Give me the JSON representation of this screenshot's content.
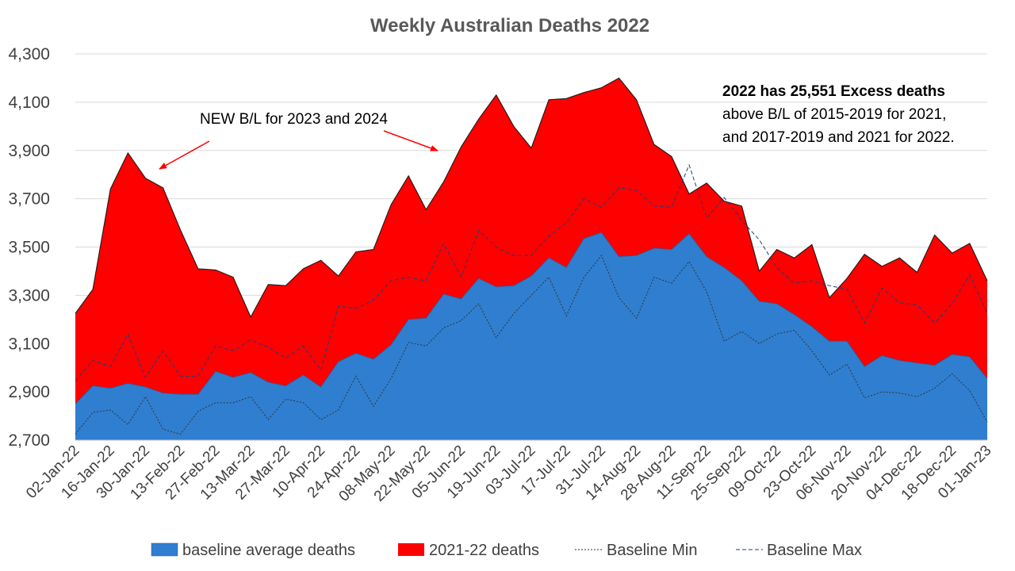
{
  "chart_data": {
    "type": "area",
    "title": "Weekly Australian Deaths 2022",
    "ylim": [
      2700,
      4300
    ],
    "yticks": [
      2700,
      2900,
      3100,
      3300,
      3500,
      3700,
      3900,
      4100,
      4300
    ],
    "ytick_labels": [
      "2,700",
      "2,900",
      "3,100",
      "3,300",
      "3,500",
      "3,700",
      "3,900",
      "4,100",
      "4,300"
    ],
    "x": [
      "02-Jan-22",
      "09-Jan-22",
      "16-Jan-22",
      "23-Jan-22",
      "30-Jan-22",
      "06-Feb-22",
      "13-Feb-22",
      "20-Feb-22",
      "27-Feb-22",
      "06-Mar-22",
      "13-Mar-22",
      "20-Mar-22",
      "27-Mar-22",
      "03-Apr-22",
      "10-Apr-22",
      "17-Apr-22",
      "24-Apr-22",
      "01-May-22",
      "08-May-22",
      "15-May-22",
      "22-May-22",
      "29-May-22",
      "05-Jun-22",
      "12-Jun-22",
      "19-Jun-22",
      "26-Jun-22",
      "03-Jul-22",
      "10-Jul-22",
      "17-Jul-22",
      "24-Jul-22",
      "31-Jul-22",
      "07-Aug-22",
      "14-Aug-22",
      "21-Aug-22",
      "28-Aug-22",
      "04-Sep-22",
      "11-Sep-22",
      "18-Sep-22",
      "25-Sep-22",
      "02-Oct-22",
      "09-Oct-22",
      "16-Oct-22",
      "23-Oct-22",
      "30-Oct-22",
      "06-Nov-22",
      "13-Nov-22",
      "20-Nov-22",
      "27-Nov-22",
      "04-Dec-22",
      "11-Dec-22",
      "18-Dec-22",
      "25-Dec-22",
      "01-Jan-23"
    ],
    "x_tick_labels": [
      "02-Jan-22",
      "16-Jan-22",
      "30-Jan-22",
      "13-Feb-22",
      "27-Feb-22",
      "13-Mar-22",
      "27-Mar-22",
      "10-Apr-22",
      "24-Apr-22",
      "08-May-22",
      "22-May-22",
      "05-Jun-22",
      "19-Jun-22",
      "03-Jul-22",
      "17-Jul-22",
      "31-Jul-22",
      "14-Aug-22",
      "28-Aug-22",
      "11-Sep-22",
      "25-Sep-22",
      "09-Oct-22",
      "23-Oct-22",
      "06-Nov-22",
      "20-Nov-22",
      "04-Dec-22",
      "18-Dec-22",
      "01-Jan-23"
    ],
    "series": [
      {
        "name": "2021-22 deaths",
        "color": "#ff0000",
        "values": [
          3225,
          3325,
          3740,
          3890,
          3785,
          3745,
          3570,
          3410,
          3405,
          3375,
          3210,
          3345,
          3340,
          3410,
          3445,
          3380,
          3480,
          3490,
          3675,
          3795,
          3655,
          3770,
          3915,
          4030,
          4130,
          4000,
          3910,
          4110,
          4115,
          4140,
          4160,
          4200,
          4110,
          3925,
          3875,
          3720,
          3765,
          3690,
          3670,
          3400,
          3490,
          3455,
          3510,
          3290,
          3370,
          3470,
          3420,
          3455,
          3395,
          3550,
          3475,
          3515,
          3360
        ]
      },
      {
        "name": "baseline average deaths",
        "color": "#2f7ed0",
        "values": [
          2850,
          2925,
          2915,
          2935,
          2920,
          2895,
          2890,
          2890,
          2985,
          2960,
          2980,
          2940,
          2925,
          2970,
          2920,
          3025,
          3060,
          3035,
          3095,
          3200,
          3205,
          3305,
          3285,
          3370,
          3335,
          3340,
          3380,
          3455,
          3415,
          3535,
          3560,
          3460,
          3465,
          3495,
          3490,
          3555,
          3460,
          3415,
          3360,
          3275,
          3265,
          3220,
          3170,
          3110,
          3110,
          3005,
          3050,
          3030,
          3020,
          3010,
          3055,
          3045,
          2955
        ]
      },
      {
        "name": "Baseline Min",
        "color": "#333333",
        "values": [
          2725,
          2815,
          2825,
          2765,
          2880,
          2745,
          2725,
          2820,
          2855,
          2855,
          2880,
          2785,
          2870,
          2855,
          2785,
          2825,
          2965,
          2840,
          2955,
          3105,
          3090,
          3165,
          3195,
          3265,
          3125,
          3225,
          3300,
          3375,
          3215,
          3375,
          3465,
          3290,
          3205,
          3375,
          3350,
          3440,
          3315,
          3110,
          3150,
          3100,
          3140,
          3155,
          3070,
          2970,
          3015,
          2875,
          2900,
          2895,
          2880,
          2915,
          2975,
          2905,
          2775
        ]
      },
      {
        "name": "Baseline Max",
        "color": "#1f3c78",
        "values": [
          2945,
          3030,
          3005,
          3140,
          2960,
          3070,
          2965,
          2965,
          3090,
          3070,
          3115,
          3085,
          3040,
          3090,
          2990,
          3255,
          3245,
          3280,
          3360,
          3375,
          3360,
          3515,
          3375,
          3570,
          3500,
          3465,
          3465,
          3545,
          3600,
          3700,
          3665,
          3745,
          3735,
          3670,
          3665,
          3840,
          3620,
          3705,
          3610,
          3530,
          3415,
          3350,
          3360,
          3340,
          3325,
          3185,
          3330,
          3270,
          3260,
          3185,
          3265,
          3385,
          3225
        ]
      }
    ],
    "legend": [
      "baseline average deaths",
      "2021-22 deaths",
      "Baseline Min",
      "Baseline Max"
    ],
    "legend_position": "bottom",
    "grid": true,
    "annotations": {
      "arrow_note": "NEW B/L for 2023 and 2024",
      "excess_bold": "2022 has 25,551 Excess deaths",
      "excess_line2": "above B/L of 2015-2019 for 2021,",
      "excess_line3": "and 2017-2019 and 2021 for 2022."
    }
  }
}
